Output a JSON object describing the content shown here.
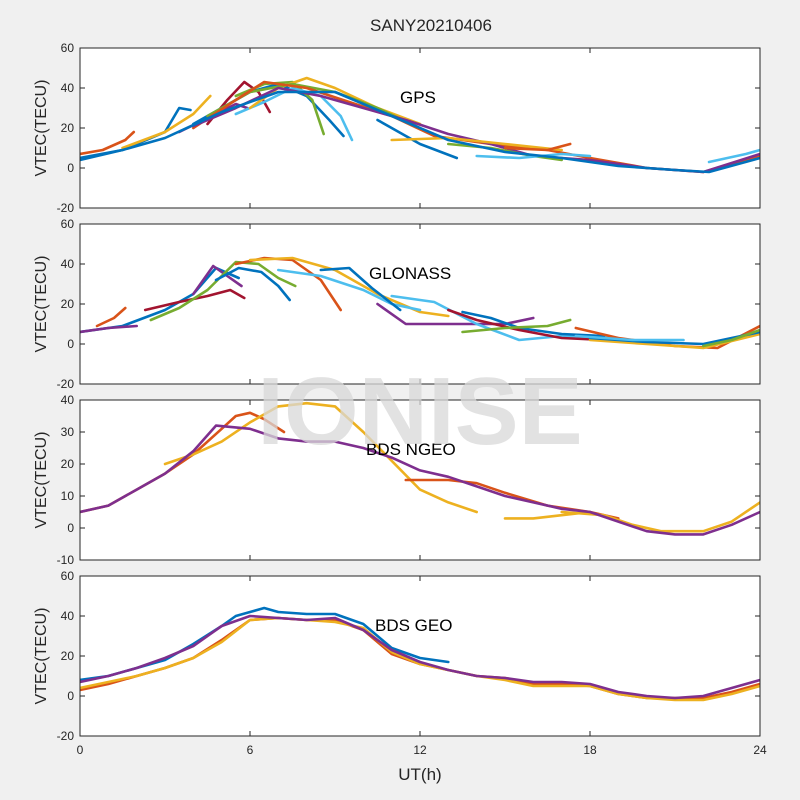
{
  "figure": {
    "title": "SANY20210406",
    "xlabel": "UT(h)",
    "watermark": "IONISE",
    "background": "#f0f0f0"
  },
  "palette": [
    "#0072bd",
    "#d95319",
    "#edb120",
    "#7e2f8e",
    "#77ac30",
    "#4dbeee",
    "#a2142f"
  ],
  "chart_data": [
    {
      "type": "line",
      "annotation": "GPS",
      "ylabel": "VTEC(TECU)",
      "xlim": [
        0,
        24
      ],
      "ylim": [
        -20,
        60
      ],
      "xticks": [
        0,
        6,
        12,
        18,
        24
      ],
      "yticks": [
        -20,
        0,
        20,
        40,
        60
      ],
      "grid": false,
      "series": [
        {
          "color": "#0072bd",
          "x": [
            0,
            1.5,
            3,
            3.5,
            3.9
          ],
          "y": [
            4,
            9,
            18,
            30,
            29
          ]
        },
        {
          "color": "#d95319",
          "x": [
            0,
            0.8,
            1.6,
            1.9
          ],
          "y": [
            7,
            9,
            14,
            18
          ]
        },
        {
          "color": "#edb120",
          "x": [
            1.5,
            3,
            4,
            4.6
          ],
          "y": [
            10,
            18,
            27,
            36
          ]
        },
        {
          "color": "#7e2f8e",
          "x": [
            3.5,
            4.5,
            5.5,
            5.9
          ],
          "y": [
            18,
            25,
            32,
            30
          ]
        },
        {
          "color": "#a2142f",
          "x": [
            4.5,
            5.2,
            5.8,
            6.3,
            6.7
          ],
          "y": [
            22,
            34,
            43,
            38,
            28
          ]
        },
        {
          "color": "#0072bd",
          "x": [
            4,
            5,
            6,
            7,
            8,
            8.8,
            9.3
          ],
          "y": [
            22,
            30,
            38,
            42,
            36,
            24,
            16
          ]
        },
        {
          "color": "#77ac30",
          "x": [
            5.5,
            6.5,
            7.5,
            8.2,
            8.6
          ],
          "y": [
            36,
            42,
            43,
            34,
            17
          ]
        },
        {
          "color": "#4dbeee",
          "x": [
            5.5,
            6.5,
            7.5,
            8.5,
            9.2,
            9.6
          ],
          "y": [
            27,
            33,
            40,
            36,
            26,
            14
          ]
        },
        {
          "color": "#edb120",
          "x": [
            6,
            7,
            8,
            9,
            10.5,
            12
          ],
          "y": [
            30,
            40,
            45,
            40,
            30,
            22
          ]
        },
        {
          "color": "#77ac30",
          "x": [
            4.5,
            6,
            7.5,
            9,
            10.5,
            12
          ],
          "y": [
            26,
            38,
            42,
            38,
            30,
            20
          ]
        },
        {
          "color": "#d95319",
          "x": [
            4,
            5.5,
            6.5,
            8,
            9.5,
            11,
            12.5,
            14.5,
            16.5,
            18,
            20,
            22,
            24
          ],
          "y": [
            20,
            34,
            43,
            40,
            33,
            26,
            16,
            12,
            9,
            5,
            0,
            -2,
            6
          ]
        },
        {
          "color": "#7e2f8e",
          "x": [
            4,
            5.5,
            7,
            8.5,
            10,
            11.5,
            13,
            14.5,
            16,
            18,
            20,
            22,
            24
          ],
          "y": [
            21,
            30,
            40,
            36,
            30,
            24,
            17,
            12,
            6,
            4,
            0,
            -2,
            7
          ]
        },
        {
          "color": "#0072bd",
          "x": [
            10.5,
            12,
            13.3
          ],
          "y": [
            24,
            12,
            5
          ]
        },
        {
          "color": "#edb120",
          "x": [
            11,
            13,
            15,
            17
          ],
          "y": [
            14,
            15,
            12,
            9
          ]
        },
        {
          "color": "#77ac30",
          "x": [
            13,
            14.5,
            16,
            17
          ],
          "y": [
            12,
            10,
            6,
            4
          ]
        },
        {
          "color": "#4dbeee",
          "x": [
            14,
            15.5,
            17,
            18
          ],
          "y": [
            6,
            5,
            7,
            6
          ]
        },
        {
          "color": "#d95319",
          "x": [
            15,
            16.5,
            17.3
          ],
          "y": [
            10,
            9,
            12
          ]
        },
        {
          "color": "#0072bd",
          "x": [
            0,
            1.5,
            3,
            5,
            7,
            9,
            11,
            13,
            15,
            17,
            19,
            21,
            22.2,
            24
          ],
          "y": [
            5,
            9,
            15,
            28,
            38,
            38,
            26,
            14,
            8,
            5,
            1,
            -1,
            -2,
            5
          ]
        },
        {
          "color": "#4dbeee",
          "x": [
            22.2,
            23.5,
            24
          ],
          "y": [
            3,
            7,
            9
          ]
        }
      ]
    },
    {
      "type": "line",
      "annotation": "GLONASS",
      "ylabel": "VTEC(TECU)",
      "xlim": [
        0,
        24
      ],
      "ylim": [
        -20,
        60
      ],
      "xticks": [
        0,
        6,
        12,
        18,
        24
      ],
      "yticks": [
        -20,
        0,
        20,
        40,
        60
      ],
      "grid": false,
      "series": [
        {
          "color": "#0072bd",
          "x": [
            0,
            1.5,
            3,
            4,
            4.8,
            5.6
          ],
          "y": [
            6,
            9,
            17,
            25,
            38,
            33
          ]
        },
        {
          "color": "#d95319",
          "x": [
            0.6,
            1.2,
            1.6
          ],
          "y": [
            9,
            13,
            18
          ]
        },
        {
          "color": "#7e2f8e",
          "x": [
            4,
            4.7,
            5.2,
            5.7
          ],
          "y": [
            25,
            39,
            34,
            29
          ]
        },
        {
          "color": "#a2142f",
          "x": [
            2.3,
            3.5,
            4.5,
            5.3,
            5.8
          ],
          "y": [
            17,
            21,
            24,
            27,
            23
          ]
        },
        {
          "color": "#77ac30",
          "x": [
            2.5,
            3.5,
            4.5,
            5.5,
            6.3,
            7,
            7.6
          ],
          "y": [
            12,
            18,
            27,
            41,
            40,
            33,
            29
          ]
        },
        {
          "color": "#0072bd",
          "x": [
            4.8,
            5.6,
            6.4,
            7,
            7.4
          ],
          "y": [
            32,
            38,
            36,
            29,
            22
          ]
        },
        {
          "color": "#d95319",
          "x": [
            5.5,
            6.5,
            7.5,
            8.5,
            9.2
          ],
          "y": [
            40,
            43,
            42,
            32,
            17
          ]
        },
        {
          "color": "#edb120",
          "x": [
            6,
            7.5,
            9,
            10.5,
            12,
            13
          ],
          "y": [
            42,
            43,
            37,
            25,
            16,
            14
          ]
        },
        {
          "color": "#4dbeee",
          "x": [
            7,
            8.5,
            10,
            11,
            12
          ],
          "y": [
            37,
            34,
            27,
            20,
            17
          ]
        },
        {
          "color": "#0072bd",
          "x": [
            8.5,
            9.5,
            10.3,
            11.3
          ],
          "y": [
            37,
            38,
            28,
            17
          ]
        },
        {
          "color": "#7e2f8e",
          "x": [
            10.5,
            11.5,
            13,
            15,
            16
          ],
          "y": [
            20,
            10,
            10,
            10,
            13
          ]
        },
        {
          "color": "#4dbeee",
          "x": [
            11,
            12.5,
            14,
            15.5,
            17,
            19
          ],
          "y": [
            24,
            21,
            10,
            2,
            4,
            3
          ]
        },
        {
          "color": "#0072bd",
          "x": [
            13.5,
            14.5,
            15.5,
            17,
            18.5
          ],
          "y": [
            16,
            13,
            8,
            5,
            4
          ]
        },
        {
          "color": "#a2142f",
          "x": [
            13,
            14,
            15.5,
            17,
            18.5
          ],
          "y": [
            17,
            12,
            7,
            3,
            2
          ]
        },
        {
          "color": "#77ac30",
          "x": [
            13.5,
            15,
            16.5,
            17.3
          ],
          "y": [
            6,
            8,
            9,
            12
          ]
        },
        {
          "color": "#d95319",
          "x": [
            17.5,
            19,
            21,
            22.5,
            24
          ],
          "y": [
            8,
            3,
            -1,
            -2,
            9
          ]
        },
        {
          "color": "#edb120",
          "x": [
            18,
            20,
            22,
            24
          ],
          "y": [
            2,
            0,
            -2,
            5
          ]
        },
        {
          "color": "#0072bd",
          "x": [
            18,
            20,
            22,
            24
          ],
          "y": [
            3,
            1,
            0,
            6
          ]
        },
        {
          "color": "#4dbeee",
          "x": [
            17.5,
            19.5,
            21.3
          ],
          "y": [
            4,
            2,
            2
          ]
        },
        {
          "color": "#77ac30",
          "x": [
            22,
            23,
            24
          ],
          "y": [
            -1,
            2,
            7
          ]
        },
        {
          "color": "#7e2f8e",
          "x": [
            0,
            1,
            2
          ],
          "y": [
            6,
            8,
            9
          ]
        }
      ]
    },
    {
      "type": "line",
      "annotation": "BDS NGEO",
      "ylabel": "VTEC(TECU)",
      "xlim": [
        0,
        24
      ],
      "ylim": [
        -10,
        40
      ],
      "xticks": [
        0,
        6,
        12,
        18,
        24
      ],
      "yticks": [
        -10,
        0,
        10,
        20,
        30,
        40
      ],
      "grid": false,
      "series": [
        {
          "color": "#d95319",
          "x": [
            0,
            1,
            2,
            3,
            4,
            5,
            5.5,
            6,
            6.5,
            7.2
          ],
          "y": [
            5,
            7,
            12,
            17,
            23,
            31,
            35,
            36,
            34,
            30
          ]
        },
        {
          "color": "#edb120",
          "x": [
            3,
            4,
            5,
            6,
            7,
            8,
            9,
            10,
            11,
            12,
            13,
            14
          ],
          "y": [
            20,
            23,
            27,
            33,
            38,
            39,
            38,
            30,
            21,
            12,
            8,
            5
          ]
        },
        {
          "color": "#edb120",
          "x": [
            15,
            16,
            17,
            18
          ],
          "y": [
            3,
            3,
            4,
            5
          ]
        },
        {
          "color": "#d95319",
          "x": [
            11.5,
            13,
            14,
            15,
            16.5,
            18,
            19
          ],
          "y": [
            15,
            15,
            14,
            11,
            7,
            5,
            3
          ]
        },
        {
          "color": "#edb120",
          "x": [
            17,
            18.5,
            19.5,
            20.5,
            22,
            23,
            24
          ],
          "y": [
            5,
            4,
            1,
            -1,
            -1,
            2,
            8
          ]
        },
        {
          "color": "#7e2f8e",
          "x": [
            0,
            1,
            2,
            3,
            4,
            4.8,
            6,
            7,
            8,
            9,
            10,
            11,
            12,
            13,
            14,
            15,
            16,
            17,
            18,
            19,
            20,
            21,
            22,
            23,
            24
          ],
          "y": [
            5,
            7,
            12,
            17,
            24,
            32,
            31,
            28,
            27,
            27,
            25,
            22,
            18,
            16,
            13,
            10,
            8,
            6,
            5,
            2,
            -1,
            -2,
            -2,
            1,
            5
          ]
        }
      ]
    },
    {
      "type": "line",
      "annotation": "BDS GEO",
      "ylabel": "VTEC(TECU)",
      "xlim": [
        0,
        24
      ],
      "ylim": [
        -20,
        60
      ],
      "xticks": [
        0,
        6,
        12,
        18,
        24
      ],
      "yticks": [
        -20,
        0,
        20,
        40,
        60
      ],
      "grid": false,
      "series": [
        {
          "color": "#0072bd",
          "x": [
            0,
            1,
            2,
            3,
            4,
            5,
            5.5,
            6,
            6.5,
            7,
            8,
            9,
            10,
            11,
            12,
            13
          ],
          "y": [
            8,
            10,
            14,
            18,
            26,
            35,
            40,
            42,
            44,
            42,
            41,
            41,
            36,
            24,
            19,
            17
          ]
        },
        {
          "color": "#d95319",
          "x": [
            0,
            1,
            2,
            3,
            4,
            5,
            6,
            7,
            8,
            9,
            10,
            11,
            12,
            13,
            14,
            15,
            16,
            17,
            18,
            19,
            20,
            21,
            22,
            23,
            24
          ],
          "y": [
            3,
            6,
            10,
            14,
            19,
            28,
            38,
            39,
            38,
            38,
            33,
            21,
            16,
            13,
            10,
            9,
            6,
            6,
            5,
            1,
            -1,
            -1,
            -1,
            2,
            6
          ]
        },
        {
          "color": "#edb120",
          "x": [
            0,
            1,
            2,
            3,
            4,
            5,
            6,
            7,
            8,
            9,
            10,
            11,
            12,
            13,
            14,
            15,
            16,
            17,
            18,
            19,
            20,
            21,
            22,
            23,
            24
          ],
          "y": [
            4,
            7,
            10,
            14,
            19,
            27,
            38,
            39,
            38,
            37,
            34,
            22,
            16,
            13,
            10,
            8,
            5,
            5,
            5,
            1,
            -1,
            -2,
            -2,
            1,
            5
          ]
        },
        {
          "color": "#7e2f8e",
          "x": [
            0,
            1,
            2,
            3,
            4,
            5,
            6,
            7,
            8,
            9,
            10,
            11,
            12,
            13,
            14,
            15,
            16,
            17,
            18,
            19,
            20,
            21,
            22,
            23,
            24
          ],
          "y": [
            7,
            10,
            14,
            19,
            25,
            35,
            40,
            39,
            38,
            39,
            33,
            23,
            17,
            13,
            10,
            9,
            7,
            7,
            6,
            2,
            0,
            -1,
            0,
            4,
            8
          ]
        }
      ]
    }
  ]
}
